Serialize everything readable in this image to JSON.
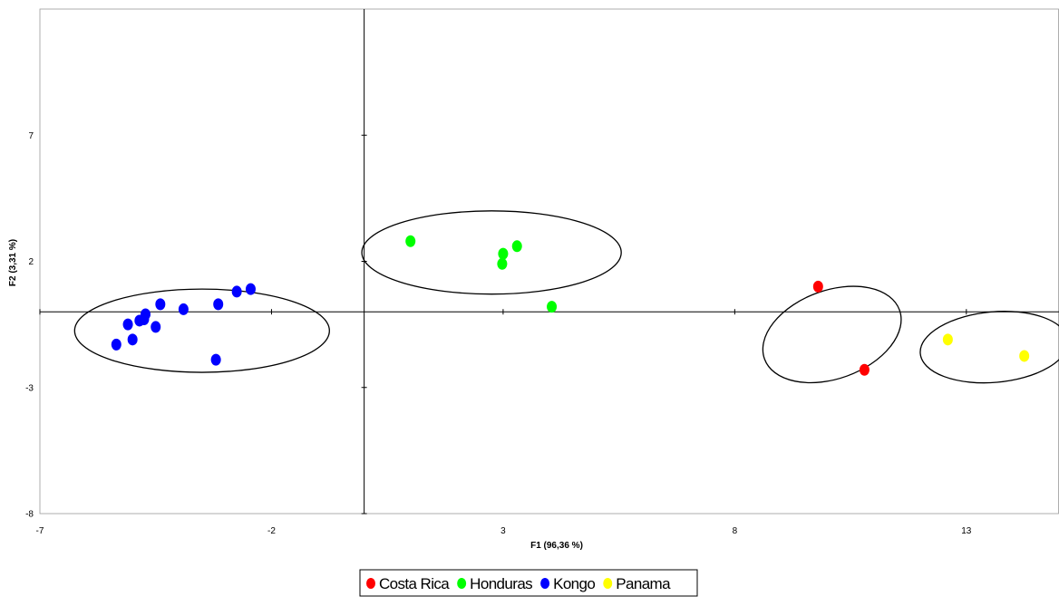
{
  "chart_data": {
    "type": "scatter",
    "xlabel": "F1 (96,36 %)",
    "ylabel": "F2 (3,31 %)",
    "xlim": [
      -7,
      15
    ],
    "ylim": [
      -8,
      12
    ],
    "xticks": [
      -7,
      -2,
      3,
      8,
      13
    ],
    "yticks": [
      -8,
      -3,
      2,
      7
    ],
    "grid": false,
    "legend_position": "bottom",
    "series": [
      {
        "name": "Costa Rica",
        "color": "#ff0000",
        "points": [
          [
            9.8,
            1.0
          ],
          [
            10.8,
            -2.3
          ]
        ]
      },
      {
        "name": "Honduras",
        "color": "#00ff00",
        "points": [
          [
            1.0,
            2.8
          ],
          [
            3.3,
            2.6
          ],
          [
            3.0,
            2.3
          ],
          [
            2.98,
            1.9
          ],
          [
            4.05,
            0.2
          ]
        ]
      },
      {
        "name": "Kongo",
        "color": "#0000ff",
        "points": [
          [
            -2.45,
            0.9
          ],
          [
            -2.75,
            0.8
          ],
          [
            -3.15,
            0.3
          ],
          [
            -4.4,
            0.3
          ],
          [
            -3.9,
            0.1
          ],
          [
            -4.72,
            -0.1
          ],
          [
            -4.75,
            -0.3
          ],
          [
            -4.85,
            -0.35
          ],
          [
            -5.1,
            -0.5
          ],
          [
            -4.5,
            -0.6
          ],
          [
            -5.0,
            -1.1
          ],
          [
            -5.35,
            -1.3
          ],
          [
            -3.2,
            -1.9
          ]
        ]
      },
      {
        "name": "Panama",
        "color": "#ffff00",
        "points": [
          [
            12.6,
            -1.1
          ],
          [
            14.25,
            -1.75
          ]
        ]
      }
    ],
    "clusters": [
      {
        "cx": -3.5,
        "cy": -0.75,
        "rx": 5.5,
        "ry": 3.3,
        "rotate": 0
      },
      {
        "cx": 2.75,
        "cy": 2.35,
        "rx": 5.6,
        "ry": 3.3,
        "rotate": 0
      },
      {
        "cx": 10.1,
        "cy": -0.9,
        "rx": 3.1,
        "ry": 3.5,
        "rotate": -20
      },
      {
        "cx": 13.6,
        "cy": -1.4,
        "rx": 3.2,
        "ry": 2.8,
        "rotate": -5
      }
    ]
  }
}
